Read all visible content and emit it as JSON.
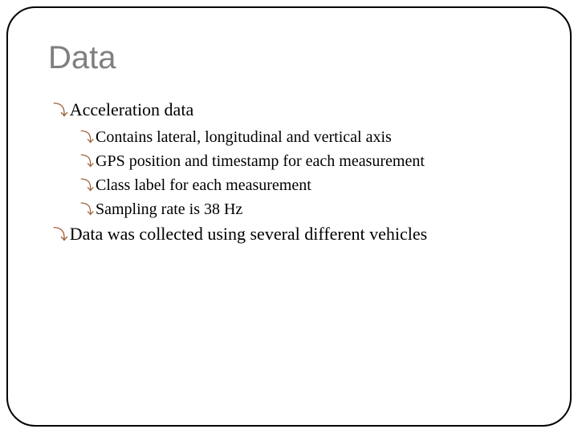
{
  "slide": {
    "title": "Data",
    "title_color": "#7f7f7f",
    "title_fontsize": 40,
    "border_color": "#000000",
    "border_radius": 36,
    "bullet_icon_color": "#9c5b2f",
    "body_fontsize_l1": 22,
    "body_fontsize_l2": 20,
    "background_color": "#ffffff",
    "bullets": [
      {
        "level": 1,
        "text": "Acceleration data"
      },
      {
        "level": 2,
        "text": "Contains lateral, longitudinal and vertical axis"
      },
      {
        "level": 2,
        "text": "GPS position and timestamp for each measurement"
      },
      {
        "level": 2,
        "text": "Class label for each measurement"
      },
      {
        "level": 2,
        "text": "Sampling rate is 38 Hz"
      },
      {
        "level": 1,
        "text": "Data was collected using several different vehicles"
      }
    ]
  }
}
